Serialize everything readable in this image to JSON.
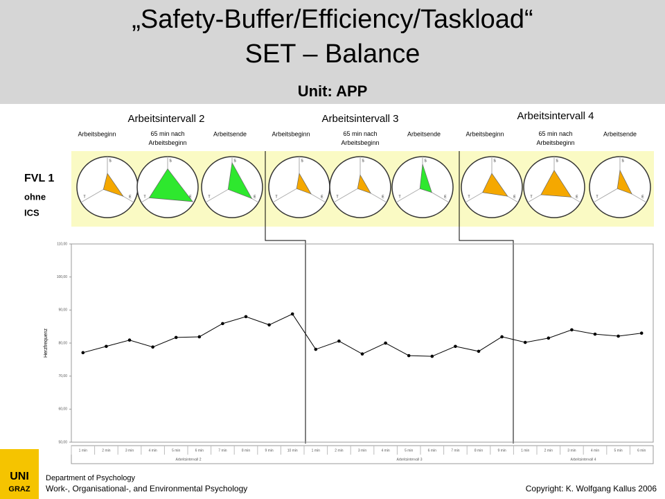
{
  "header": {
    "title_line1": "„Safety-Buffer/Efficiency/Taskload“",
    "title_line2": "SET – Balance",
    "unit": "Unit: APP"
  },
  "intervals": [
    {
      "label": "Arbeitsintervall 2",
      "phases": [
        "Arbeitsbeginn",
        "65 min nach Arbeitsbeginn",
        "Arbeitsende"
      ]
    },
    {
      "label": "Arbeitsintervall 3",
      "phases": [
        "Arbeitsbeginn",
        "65 min nach Arbeitsbeginn",
        "Arbeitsende"
      ]
    },
    {
      "label": "Arbeitsintervall 4",
      "phases": [
        "Arbeitsbeginn",
        "65 min nach Arbeitsbeginn",
        "Arbeitsende"
      ]
    }
  ],
  "row_label": {
    "line1": "FVL 1",
    "line2": "ohne",
    "line3": "ICS"
  },
  "radar_axes": [
    "S",
    "E",
    "T"
  ],
  "radars": [
    {
      "color": "#f5a800",
      "values": [
        0.45,
        0.6,
        0.15
      ]
    },
    {
      "color": "#2ee82e",
      "values": [
        0.6,
        0.95,
        0.7
      ]
    },
    {
      "color": "#2ee82e",
      "values": [
        0.8,
        0.75,
        0.15
      ]
    },
    {
      "color": "#f5a800",
      "values": [
        0.45,
        0.45,
        0.1
      ]
    },
    {
      "color": "#f5a800",
      "values": [
        0.4,
        0.4,
        0.1
      ]
    },
    {
      "color": "#2ee82e",
      "values": [
        0.75,
        0.35,
        0.1
      ]
    },
    {
      "color": "#f5a800",
      "values": [
        0.45,
        0.6,
        0.35
      ]
    },
    {
      "color": "#f5a800",
      "values": [
        0.55,
        0.65,
        0.5
      ]
    },
    {
      "color": "#f5a800",
      "values": [
        0.55,
        0.45,
        0.1
      ]
    }
  ],
  "chart_data": {
    "type": "line",
    "y_label": "Herzfrequenz",
    "color": "#000000",
    "categories": [
      "1 min",
      "2 min",
      "3 min",
      "4 min",
      "5 min",
      "6 min",
      "7 min",
      "8 min",
      "9 min",
      "10 min",
      "1 min",
      "2 min",
      "3 min",
      "4 min",
      "5 min",
      "6 min",
      "7 min",
      "8 min",
      "9 min",
      "1 min",
      "2 min",
      "3 min",
      "4 min",
      "5 min",
      "6 min"
    ],
    "values": [
      77.1,
      79.0,
      80.9,
      78.8,
      81.7,
      81.9,
      85.9,
      88.0,
      85.5,
      88.8,
      78.1,
      80.6,
      76.7,
      80.0,
      76.2,
      76.0,
      79.0,
      77.5,
      81.9,
      80.2,
      81.5,
      84.0,
      82.7,
      82.1,
      83.0
    ],
    "group_labels": [
      "Arbeitsintervall 2",
      "Arbeitsintervall 3",
      "Arbeitsintervall 4"
    ],
    "ylim": [
      50,
      110
    ],
    "yticks": [
      {
        "value": 50,
        "label": "50,00"
      },
      {
        "value": 60,
        "label": "60,00"
      },
      {
        "value": 70,
        "label": "70,00"
      },
      {
        "value": 80,
        "label": "80,00"
      },
      {
        "value": 90,
        "label": "90,00"
      },
      {
        "value": 100,
        "label": "100,00"
      },
      {
        "value": 110,
        "label": "110,00"
      }
    ]
  },
  "footer": {
    "dept": "Department of Psychology",
    "sub": "Work-, Organisational-, and Environmental Psychology",
    "copyright": "Copyright: K. Wolfgang Kallus 2006",
    "logo1": "UNI",
    "logo2": "GRAZ"
  }
}
